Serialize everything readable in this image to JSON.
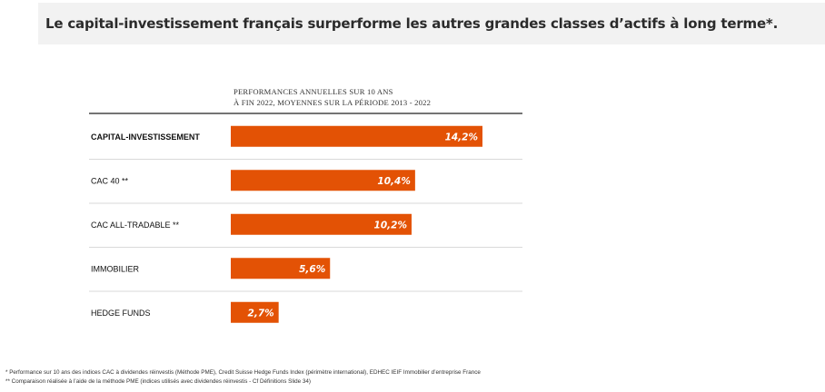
{
  "banner": {
    "title": "Le capital-investissement français surperforme les autres grandes classes d’actifs à long terme*."
  },
  "colors": {
    "bar": "#e35205",
    "banner_bg": "#f2f2f2",
    "divider": "#d9d9d9",
    "header_rule": "#222222"
  },
  "chart_data": {
    "type": "bar",
    "orientation": "horizontal",
    "title_lines": [
      "PERFORMANCES ANNUELLES SUR 10 ANS",
      "À FIN 2022, MOYENNES SUR LA PÉRIODE 2013 - 2022"
    ],
    "categories": [
      "CAPITAL-INVESTISSEMENT",
      "CAC 40 **",
      "CAC ALL-TRADABLE **",
      "IMMOBILIER",
      "HEDGE FUNDS"
    ],
    "values": [
      14.2,
      10.4,
      10.2,
      5.6,
      2.7
    ],
    "value_labels": [
      "14,2%",
      "10,4%",
      "10,2%",
      "5,6%",
      "2,7%"
    ],
    "unit": "%",
    "xlim": [
      0,
      14.2
    ],
    "grid": false,
    "legend": "none"
  },
  "footnotes": [
    "* Performance sur 10 ans des indices CAC à dividendes réinvestis (Méthode PME), Credit Suisse Hedge Funds Index (périmètre international), EDHEC IEIF Immobilier d’entreprise France",
    "** Comparaison réalisée à l’aide de la méthode PME (indices utilisés avec dividendes réinvestis  - Cf Définitions Slide 34)"
  ]
}
